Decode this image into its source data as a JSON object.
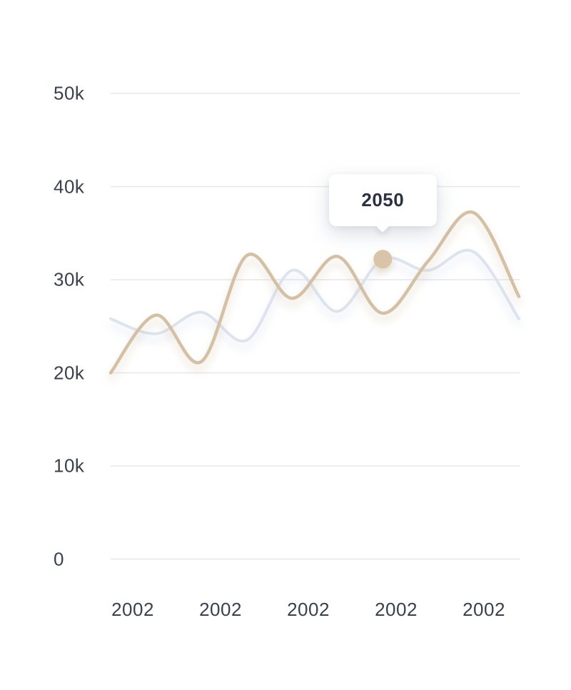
{
  "page": {
    "background": "#ffffff"
  },
  "chart_data": {
    "type": "line",
    "curve": "smooth",
    "grid": "horizontal-only",
    "legend": "none",
    "x_axis": {
      "tick_labels": [
        "2002",
        "2002",
        "2002",
        "2002",
        "2002"
      ]
    },
    "y_axis": {
      "tick_labels": [
        "50k",
        "40k",
        "30k",
        "20k",
        "10k",
        "0"
      ],
      "tick_values": [
        50000,
        40000,
        30000,
        20000,
        10000,
        0
      ],
      "range": [
        0,
        50000
      ]
    },
    "series": [
      {
        "name": "comparison-series",
        "color": "#dde4ee",
        "stroke_width": 4,
        "values": [
          25800,
          24200,
          26500,
          23500,
          31000,
          26600,
          32200,
          31000,
          33000,
          25800
        ]
      },
      {
        "name": "main-series",
        "color": "#d4c0a4",
        "stroke_width": 4.5,
        "values": [
          20000,
          26200,
          21200,
          32600,
          28000,
          32500,
          26400,
          32000,
          37200,
          28200
        ]
      }
    ],
    "marker": {
      "series_index": 0,
      "point_index": 6,
      "color": "#d9c4a8",
      "radius": 13
    },
    "tooltip": {
      "label": "2050",
      "text_color": "#2a3143",
      "background": "#ffffff"
    },
    "colors": {
      "grid_line": "#e6e7eb",
      "axis_text": "#39404e"
    }
  }
}
